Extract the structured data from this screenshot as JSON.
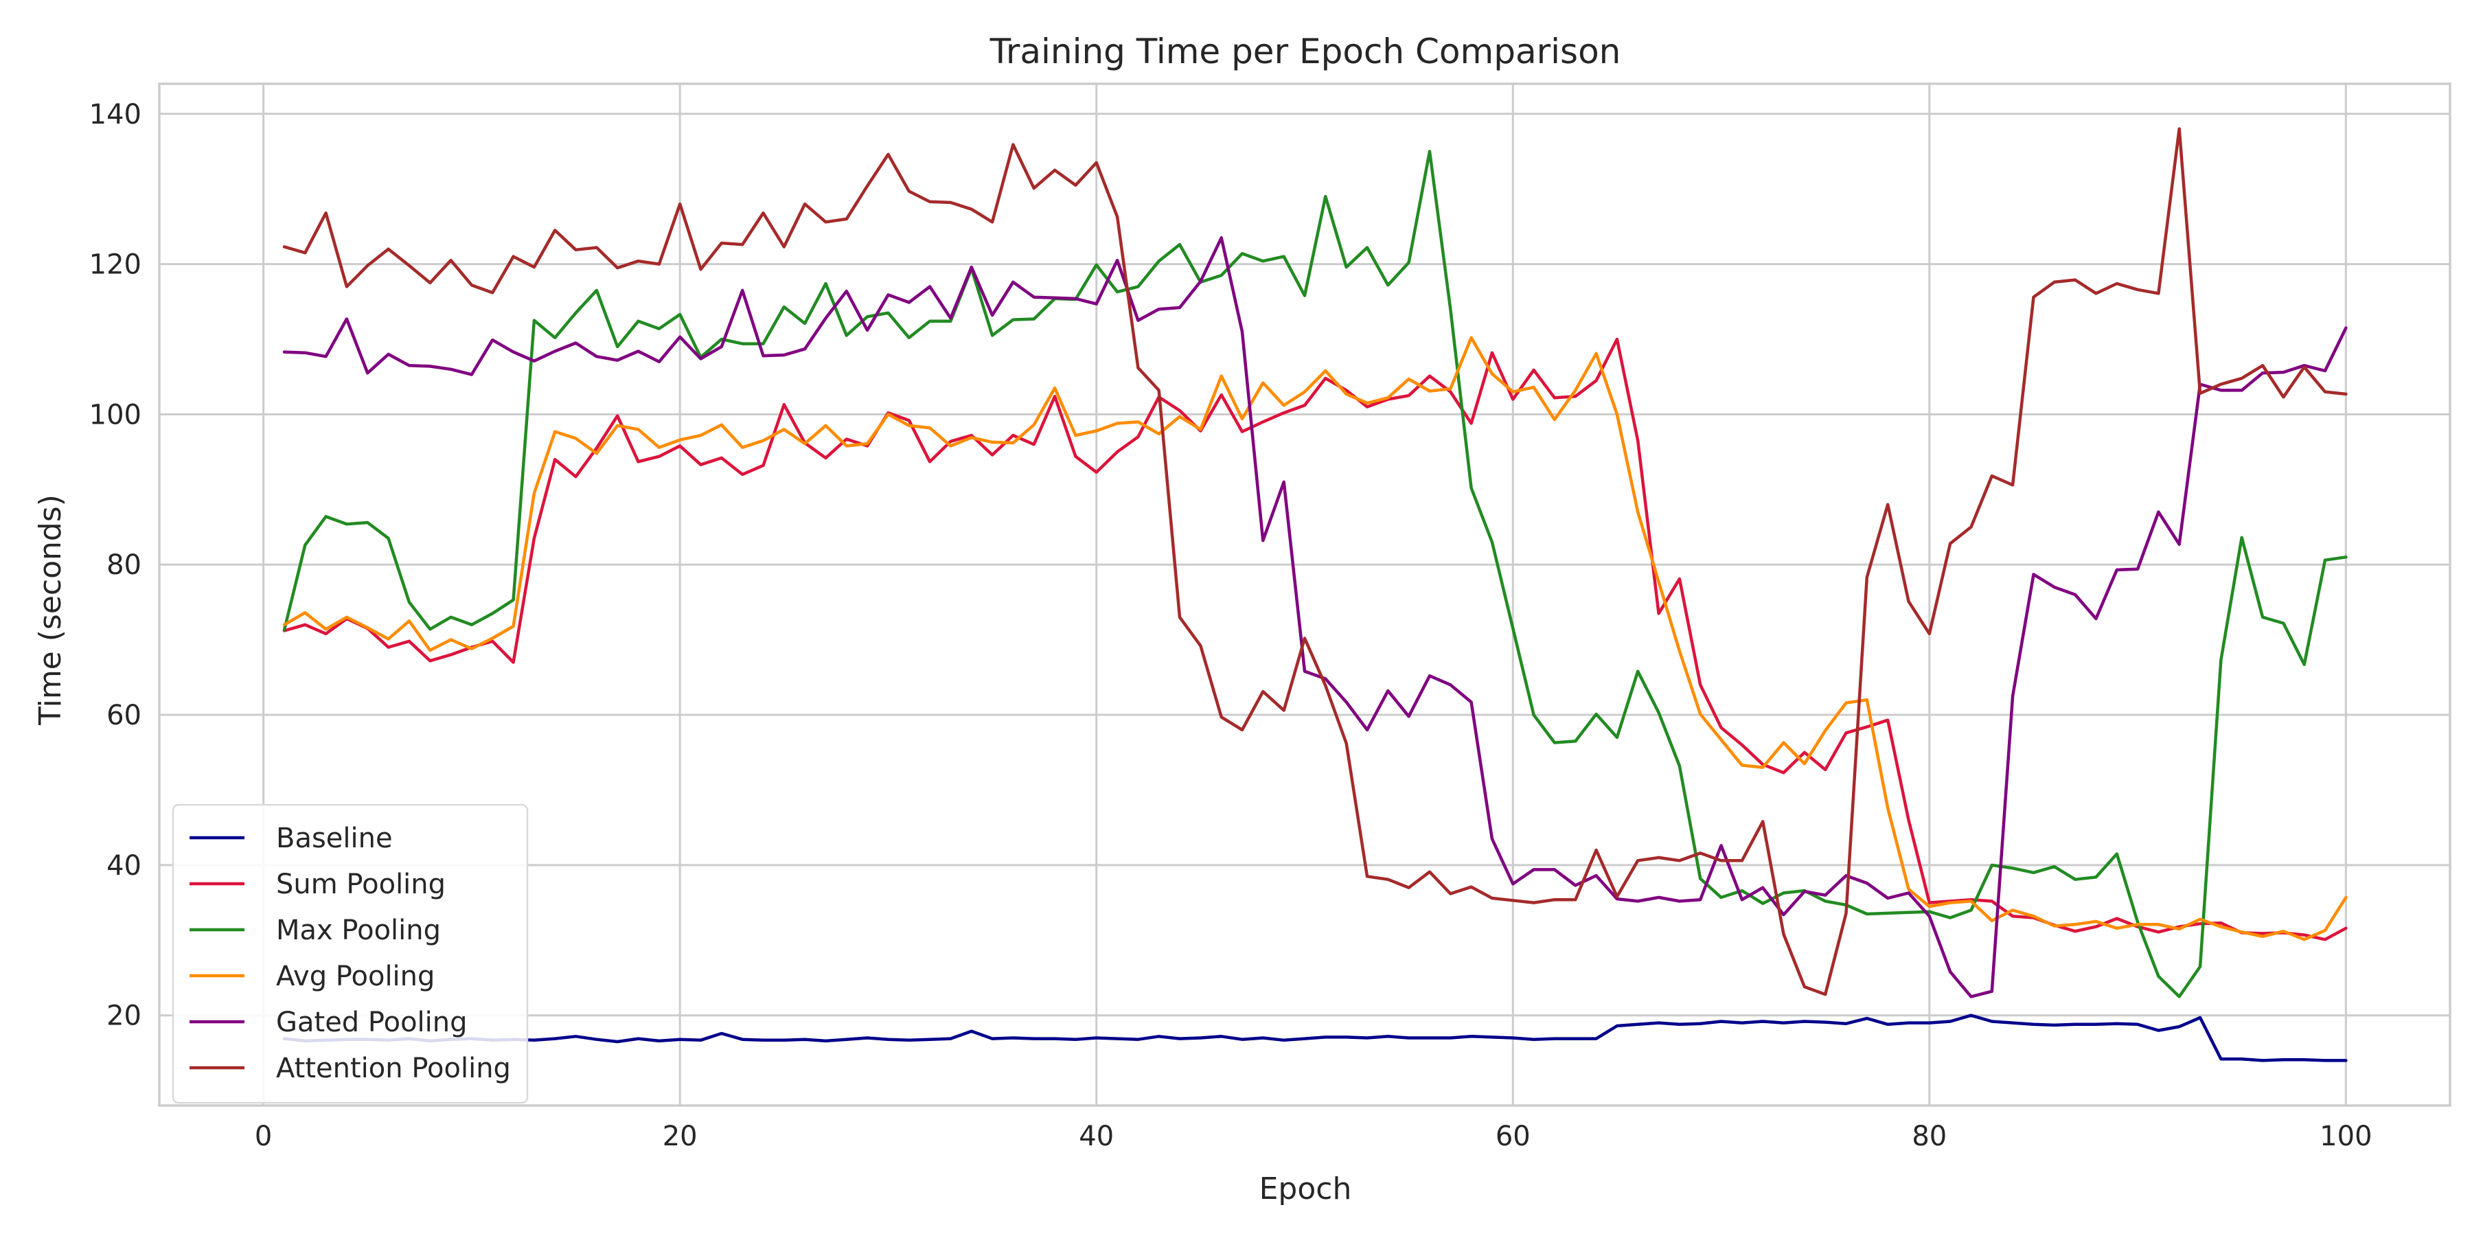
{
  "chart_data": {
    "type": "line",
    "title": "Training Time per Epoch Comparison",
    "xlabel": "Epoch",
    "ylabel": "Time (seconds)",
    "xlim": [
      -5,
      105
    ],
    "ylim": [
      8,
      144
    ],
    "xticks": [
      0,
      20,
      40,
      60,
      80,
      100
    ],
    "yticks": [
      20,
      40,
      60,
      80,
      100,
      120,
      140
    ],
    "grid": true,
    "legend_position": "lower-left",
    "x": [
      1,
      2,
      3,
      4,
      5,
      6,
      7,
      8,
      9,
      10,
      11,
      12,
      13,
      14,
      15,
      16,
      17,
      18,
      19,
      20,
      21,
      22,
      23,
      24,
      25,
      26,
      27,
      28,
      29,
      30,
      31,
      32,
      33,
      34,
      35,
      36,
      37,
      38,
      39,
      40,
      41,
      42,
      43,
      44,
      45,
      46,
      47,
      48,
      49,
      50,
      51,
      52,
      53,
      54,
      55,
      56,
      57,
      58,
      59,
      60,
      61,
      62,
      63,
      64,
      65,
      66,
      67,
      68,
      69,
      70,
      71,
      72,
      73,
      74,
      75,
      76,
      77,
      78,
      79,
      80,
      81,
      82,
      83,
      84,
      85,
      86,
      87,
      88,
      89,
      90,
      91,
      92,
      93,
      94,
      95,
      96,
      97,
      98,
      99,
      100
    ],
    "series": [
      {
        "name": "Baseline",
        "color": "#00008b",
        "values": [
          16.9,
          16.6,
          16.7,
          16.8,
          16.8,
          16.7,
          16.9,
          16.6,
          16.8,
          16.9,
          16.7,
          16.8,
          16.7,
          16.9,
          17.2,
          16.8,
          16.5,
          16.9,
          16.6,
          16.8,
          16.7,
          17.6,
          16.8,
          16.7,
          16.7,
          16.8,
          16.6,
          16.8,
          17.0,
          16.8,
          16.7,
          16.8,
          16.9,
          17.9,
          16.9,
          17.0,
          16.9,
          16.9,
          16.8,
          17.0,
          16.9,
          16.8,
          17.2,
          16.9,
          17.0,
          17.2,
          16.8,
          17.0,
          16.7,
          16.9,
          17.1,
          17.1,
          17.0,
          17.2,
          17.0,
          17.0,
          17.0,
          17.2,
          17.1,
          17.0,
          16.8,
          16.9,
          16.9,
          16.9,
          18.6,
          18.8,
          19.0,
          18.8,
          18.9,
          19.2,
          19.0,
          19.2,
          19.0,
          19.2,
          19.1,
          18.9,
          19.6,
          18.8,
          19.0,
          19.0,
          19.2,
          20.0,
          19.2,
          19.0,
          18.8,
          18.7,
          18.8,
          18.8,
          18.9,
          18.8,
          18.0,
          18.5,
          19.7,
          14.2,
          14.2,
          14.0,
          14.1,
          14.1,
          14.0,
          14.0
        ]
      },
      {
        "name": "Sum Pooling",
        "color": "#dc143c",
        "values": [
          71.2,
          72.0,
          70.8,
          72.8,
          71.5,
          69.0,
          69.8,
          67.2,
          68.0,
          69.0,
          69.8,
          67.0,
          83.5,
          94.0,
          91.7,
          95.5,
          99.8,
          93.7,
          94.4,
          95.8,
          93.3,
          94.2,
          92.0,
          93.2,
          101.3,
          96.2,
          94.2,
          96.7,
          95.8,
          100.2,
          99.2,
          93.7,
          96.4,
          97.2,
          94.6,
          97.2,
          96.0,
          102.4,
          94.4,
          92.3,
          95.0,
          97.0,
          102.3,
          100.5,
          97.8,
          102.6,
          97.7,
          99.0,
          100.2,
          101.2,
          104.8,
          103.2,
          101.0,
          102.0,
          102.5,
          105.1,
          103.0,
          98.8,
          108.2,
          102.0,
          105.9,
          102.2,
          102.4,
          104.5,
          110.0,
          96.5,
          73.5,
          78.1,
          64.0,
          58.3,
          56.0,
          53.4,
          52.3,
          55.0,
          52.7,
          57.6,
          58.4,
          59.3,
          46.0,
          35.0,
          35.2,
          35.4,
          35.2,
          33.2,
          33.0,
          32.0,
          31.2,
          31.8,
          32.9,
          31.8,
          31.1,
          31.8,
          32.2,
          32.3,
          31.0,
          30.9,
          31.0,
          30.7,
          30.1,
          31.6
        ]
      },
      {
        "name": "Max Pooling",
        "color": "#228b22",
        "values": [
          71.3,
          82.6,
          86.4,
          85.4,
          85.6,
          83.5,
          75.0,
          71.4,
          73.0,
          72.0,
          73.5,
          75.3,
          112.5,
          110.2,
          113.5,
          116.5,
          109.0,
          112.4,
          111.4,
          113.3,
          107.6,
          110.0,
          109.4,
          109.4,
          114.3,
          112.1,
          117.4,
          110.5,
          113.0,
          113.5,
          110.2,
          112.4,
          112.4,
          119.4,
          110.5,
          112.6,
          112.7,
          115.4,
          115.3,
          119.9,
          116.3,
          117.0,
          120.4,
          122.6,
          117.6,
          118.5,
          121.4,
          120.4,
          121.0,
          115.8,
          129.0,
          119.6,
          122.2,
          117.2,
          120.2,
          135.0,
          114.0,
          90.2,
          83.0,
          71.5,
          60.0,
          56.3,
          56.5,
          60.1,
          57.0,
          65.8,
          60.3,
          53.2,
          38.2,
          35.7,
          36.6,
          34.9,
          36.3,
          36.6,
          35.2,
          34.7,
          33.5,
          33.6,
          33.7,
          33.8,
          33.0,
          34.0,
          40.0,
          39.6,
          39.0,
          39.8,
          38.1,
          38.4,
          41.5,
          32.4,
          25.2,
          22.5,
          26.5,
          67.3,
          83.6,
          73.0,
          72.2,
          66.7,
          80.6,
          81.0
        ]
      },
      {
        "name": "Avg Pooling",
        "color": "#ff8c00",
        "values": [
          72.0,
          73.6,
          71.4,
          73.0,
          71.6,
          70.1,
          72.5,
          68.6,
          70.0,
          68.8,
          70.2,
          71.8,
          89.5,
          97.7,
          96.8,
          94.8,
          98.5,
          98.0,
          95.6,
          96.6,
          97.2,
          98.6,
          95.6,
          96.5,
          98.0,
          96.1,
          98.5,
          95.8,
          96.1,
          100.0,
          98.5,
          98.2,
          95.8,
          96.9,
          96.3,
          96.2,
          98.6,
          103.5,
          97.2,
          97.8,
          98.8,
          99.0,
          97.4,
          99.7,
          98.0,
          105.1,
          99.4,
          104.2,
          101.2,
          103.0,
          105.8,
          102.7,
          101.5,
          102.2,
          104.7,
          103.1,
          103.4,
          110.2,
          105.4,
          103.0,
          103.6,
          99.3,
          103.2,
          108.1,
          100.0,
          87.0,
          77.7,
          68.5,
          60.1,
          56.7,
          53.3,
          53.0,
          56.3,
          53.5,
          57.9,
          61.6,
          62.0,
          47.6,
          36.8,
          34.5,
          35.0,
          35.2,
          32.6,
          34.0,
          33.2,
          31.9,
          32.1,
          32.5,
          31.6,
          32.1,
          32.1,
          31.5,
          32.8,
          31.8,
          31.1,
          30.5,
          31.2,
          30.1,
          31.3,
          35.7
        ]
      },
      {
        "name": "Gated Pooling",
        "color": "#800080",
        "values": [
          108.3,
          108.2,
          107.7,
          112.7,
          105.5,
          108.0,
          106.5,
          106.4,
          106.0,
          105.3,
          109.9,
          108.3,
          107.1,
          108.4,
          109.5,
          107.7,
          107.2,
          108.4,
          107.0,
          110.3,
          107.4,
          109.0,
          116.5,
          107.8,
          107.9,
          108.7,
          112.8,
          116.4,
          111.2,
          115.9,
          114.9,
          117.0,
          112.8,
          119.6,
          113.2,
          117.6,
          115.6,
          115.5,
          115.4,
          114.7,
          120.5,
          112.5,
          114.0,
          114.2,
          117.7,
          123.5,
          111.0,
          83.2,
          91.0,
          65.8,
          64.8,
          61.7,
          58.0,
          63.2,
          59.8,
          65.2,
          64.0,
          61.7,
          43.5,
          37.5,
          39.4,
          39.4,
          37.3,
          38.6,
          35.5,
          35.2,
          35.7,
          35.2,
          35.4,
          42.6,
          35.4,
          37.0,
          33.4,
          36.5,
          36.0,
          38.6,
          37.6,
          35.6,
          36.3,
          33.2,
          25.8,
          22.5,
          23.2,
          62.5,
          78.7,
          77.0,
          76.0,
          72.8,
          79.3,
          79.4,
          87.0,
          82.7,
          104.0,
          103.2,
          103.2,
          105.5,
          105.6,
          106.5,
          105.8,
          111.5
        ]
      },
      {
        "name": "Attention Pooling",
        "color": "#a52a2a",
        "values": [
          122.3,
          121.5,
          126.8,
          117.0,
          119.8,
          122.0,
          119.8,
          117.5,
          120.5,
          117.2,
          116.2,
          121.0,
          119.6,
          124.5,
          121.9,
          122.2,
          119.5,
          120.4,
          120.0,
          128.0,
          119.3,
          122.8,
          122.6,
          126.8,
          122.3,
          128.0,
          125.6,
          126.0,
          130.4,
          134.6,
          129.7,
          128.3,
          128.2,
          127.3,
          125.6,
          135.9,
          130.1,
          132.5,
          130.5,
          133.5,
          126.3,
          106.2,
          103.2,
          73.0,
          69.2,
          59.7,
          58.0,
          63.1,
          60.6,
          70.2,
          63.9,
          56.2,
          38.5,
          38.1,
          37.0,
          39.1,
          36.2,
          37.1,
          35.6,
          35.3,
          35.0,
          35.4,
          35.4,
          42.0,
          35.8,
          40.6,
          41.0,
          40.6,
          41.6,
          40.6,
          40.6,
          45.8,
          30.8,
          23.8,
          22.8,
          33.6,
          78.3,
          88.0,
          75.1,
          70.8,
          82.8,
          85.0,
          91.8,
          90.6,
          115.6,
          117.6,
          117.9,
          116.1,
          117.4,
          116.6,
          116.1,
          138.0,
          102.8,
          104.0,
          104.8,
          106.5,
          102.3,
          106.3,
          103.0,
          102.7
        ]
      }
    ]
  }
}
